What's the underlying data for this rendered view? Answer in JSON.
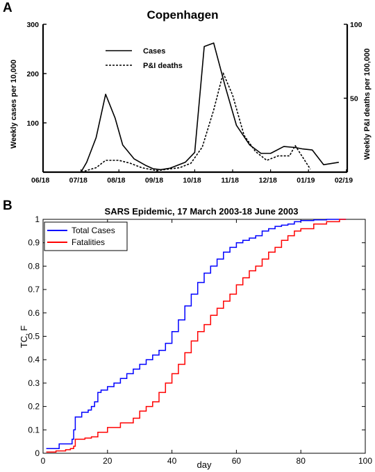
{
  "panels": {
    "a_letter": "A",
    "b_letter": "B"
  },
  "colors": {
    "total_cases": "#0000ff",
    "fatalities": "#ff0000",
    "axis": "#000000"
  },
  "chart_data": [
    {
      "type": "line",
      "title": "Copenhagen",
      "ylabel": "Weekly cases per 10,000",
      "y2label": "Weekly P&I deaths per 100,000",
      "ylim": [
        0,
        300
      ],
      "y2lim": [
        0,
        100
      ],
      "yticks": [
        "100",
        "200",
        "300"
      ],
      "y2ticks": [
        "50",
        "100"
      ],
      "xticks": [
        "06/18",
        "07/18",
        "08/18",
        "09/18",
        "10/18",
        "11/18",
        "12/18",
        "01/19",
        "02/19"
      ],
      "legend": "top-center",
      "series": [
        {
          "name": "Cases",
          "axis": "left",
          "style": "solid",
          "x": [
            0.0,
            0.45,
            1.0,
            1.15,
            1.4,
            1.65,
            1.9,
            2.1,
            2.4,
            2.7,
            2.9,
            3.1,
            3.35,
            3.75,
            4.0,
            4.25,
            4.5,
            4.8,
            5.1,
            5.45,
            5.75,
            6.0,
            6.35,
            6.65,
            6.85,
            7.1,
            7.4,
            7.8
          ],
          "y": [
            0,
            0,
            0,
            20,
            70,
            158,
            110,
            55,
            27,
            14,
            7,
            5,
            8,
            20,
            40,
            255,
            262,
            175,
            95,
            55,
            38,
            38,
            52,
            50,
            47,
            45,
            15,
            20
          ]
        },
        {
          "name": "P&I deaths",
          "axis": "right",
          "style": "dashed",
          "x": [
            0.0,
            0.45,
            1.0,
            1.4,
            1.65,
            2.0,
            2.3,
            2.6,
            3.0,
            3.3,
            3.6,
            3.9,
            4.2,
            4.5,
            4.75,
            5.0,
            5.3,
            5.6,
            5.9,
            6.2,
            6.5,
            6.65,
            6.85,
            7.05
          ],
          "y": [
            0,
            0,
            0,
            3,
            8,
            8,
            6,
            3,
            1,
            2,
            3,
            6,
            17,
            42,
            67,
            52,
            25,
            14,
            8,
            11,
            11,
            18,
            10,
            2
          ]
        }
      ]
    },
    {
      "type": "line",
      "title": "SARS Epidemic, 17 March 2003-18 June 2003",
      "xlabel": "day",
      "ylabel": "TC, F",
      "xlim": [
        0,
        100
      ],
      "ylim": [
        0,
        1
      ],
      "xticks": [
        0,
        20,
        40,
        60,
        80,
        100
      ],
      "yticks": [
        0,
        0.1,
        0.2,
        0.3,
        0.4,
        0.5,
        0.6,
        0.7,
        0.8,
        0.9,
        1
      ],
      "grid": false,
      "legend": "top-left",
      "series": [
        {
          "name": "Total Cases",
          "x": [
            1,
            5,
            9,
            9.5,
            10,
            12,
            14,
            15,
            16,
            17,
            18,
            20,
            22,
            24,
            26,
            28,
            30,
            32,
            34,
            36,
            38,
            40,
            42,
            44,
            46,
            48,
            50,
            52,
            54,
            56,
            58,
            60,
            62,
            64,
            66,
            68,
            70,
            72,
            74,
            76,
            78,
            80,
            84,
            88,
            92,
            94
          ],
          "y": [
            0.02,
            0.04,
            0.06,
            0.1,
            0.155,
            0.175,
            0.185,
            0.2,
            0.22,
            0.26,
            0.27,
            0.285,
            0.3,
            0.32,
            0.34,
            0.36,
            0.38,
            0.4,
            0.42,
            0.44,
            0.47,
            0.52,
            0.57,
            0.63,
            0.68,
            0.73,
            0.77,
            0.8,
            0.83,
            0.86,
            0.88,
            0.9,
            0.91,
            0.92,
            0.93,
            0.95,
            0.96,
            0.97,
            0.975,
            0.98,
            0.99,
            0.995,
            0.998,
            1.0,
            1.0,
            1.0
          ],
          "color": "#0000ff"
        },
        {
          "name": "Fatalities",
          "x": [
            1,
            4,
            7,
            8.5,
            9.5,
            10,
            13,
            15,
            17,
            20,
            24,
            28,
            30,
            32,
            34,
            36,
            38,
            40,
            42,
            44,
            46,
            48,
            50,
            52,
            54,
            56,
            58,
            60,
            62,
            64,
            66,
            68,
            70,
            72,
            74,
            76,
            78,
            80,
            84,
            88,
            92,
            94
          ],
          "y": [
            0.005,
            0.01,
            0.015,
            0.02,
            0.03,
            0.06,
            0.065,
            0.07,
            0.09,
            0.11,
            0.13,
            0.15,
            0.18,
            0.2,
            0.22,
            0.26,
            0.3,
            0.34,
            0.38,
            0.43,
            0.48,
            0.52,
            0.55,
            0.59,
            0.62,
            0.65,
            0.68,
            0.72,
            0.75,
            0.78,
            0.8,
            0.83,
            0.86,
            0.88,
            0.91,
            0.93,
            0.95,
            0.96,
            0.98,
            0.99,
            1.0,
            1.0
          ],
          "color": "#ff0000"
        }
      ]
    }
  ]
}
